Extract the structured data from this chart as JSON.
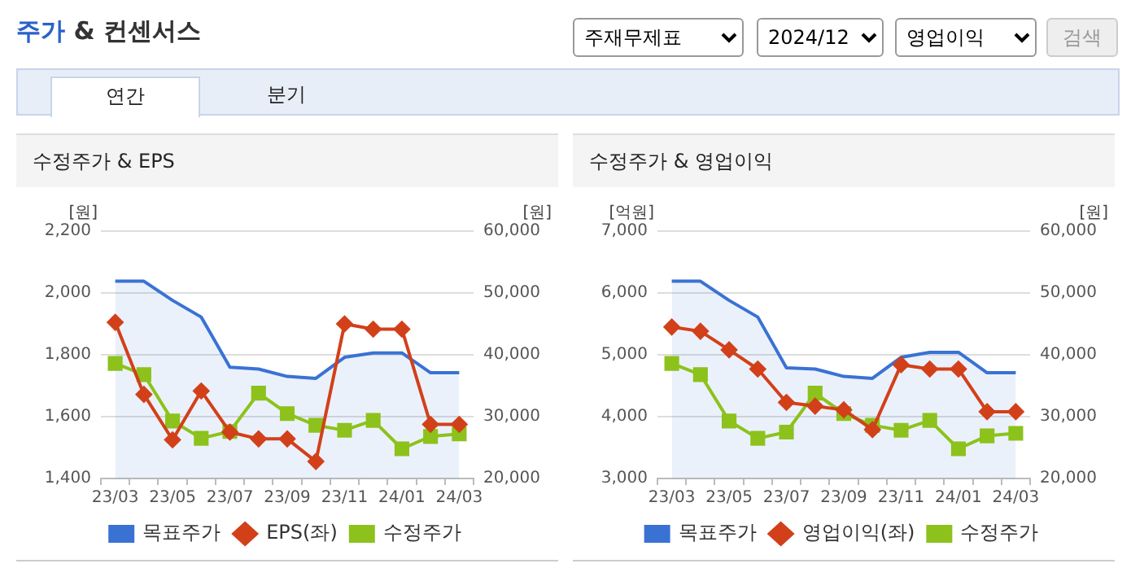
{
  "chart_data": [
    {
      "type": "other",
      "title": "주가 & 컨센서스",
      "annotations": [
        "주재무제표",
        "2024/12",
        "영업이익",
        "검색",
        "연간",
        "분기"
      ]
    },
    {
      "type": "line",
      "title": "수정주가 & EPS",
      "ylabel": "[원]",
      "y2label": "[원]",
      "grid": "y",
      "legend": "bottom",
      "categories": [
        "23/03",
        null,
        "23/05",
        null,
        "23/07",
        null,
        "23/09",
        null,
        "23/11",
        null,
        "24/01",
        null,
        "24/03"
      ],
      "ylim": [
        1400,
        2200
      ],
      "yticks": [
        {
          "value": 1400,
          "label": "1,400"
        },
        {
          "value": 1600,
          "label": "1,600"
        },
        {
          "value": 1800,
          "label": "1,800"
        },
        {
          "value": 2000,
          "label": "2,000"
        },
        {
          "value": 2200,
          "label": "2,200"
        }
      ],
      "y2lim": [
        20000,
        60000
      ],
      "y2ticks": [
        {
          "value": 20000,
          "label": "20,000"
        },
        {
          "value": 30000,
          "label": "30,000"
        },
        {
          "value": 40000,
          "label": "40,000"
        },
        {
          "value": 50000,
          "label": "50,000"
        },
        {
          "value": 60000,
          "label": "60,000"
        }
      ],
      "series": [
        {
          "name": "목표주가",
          "type": "area",
          "axis": "y2",
          "marker": "none",
          "color": "#3a72d4",
          "values": [
            51900,
            51900,
            48800,
            46100,
            38000,
            37700,
            36500,
            36200,
            39600,
            40300,
            40300,
            37100,
            37100
          ]
        },
        {
          "name": "EPS(좌)",
          "type": "line",
          "marker": "diamond",
          "color": "#d2401a",
          "values": [
            1905,
            1672,
            1525,
            1683,
            1550,
            1528,
            1528,
            1455,
            1900,
            1883,
            1883,
            1575,
            1575
          ]
        },
        {
          "name": "수정주가",
          "type": "line",
          "axis": "y2",
          "marker": "square",
          "color": "#8cc21b",
          "values": [
            38600,
            36800,
            29300,
            26500,
            27600,
            33800,
            30500,
            28600,
            27800,
            29400,
            24800,
            26800,
            27200
          ]
        }
      ]
    },
    {
      "type": "line",
      "title": "수정주가 & 영업이익",
      "ylabel": "[억원]",
      "y2label": "[원]",
      "grid": "y",
      "legend": "bottom",
      "categories": [
        "23/03",
        null,
        "23/05",
        null,
        "23/07",
        null,
        "23/09",
        null,
        "23/11",
        null,
        "24/01",
        null,
        "24/03"
      ],
      "ylim": [
        3000,
        7000
      ],
      "yticks": [
        {
          "value": 3000,
          "label": "3,000"
        },
        {
          "value": 4000,
          "label": "4,000"
        },
        {
          "value": 5000,
          "label": "5,000"
        },
        {
          "value": 6000,
          "label": "6,000"
        },
        {
          "value": 7000,
          "label": "7,000"
        }
      ],
      "y2lim": [
        20000,
        60000
      ],
      "y2ticks": [
        {
          "value": 20000,
          "label": "20,000"
        },
        {
          "value": 30000,
          "label": "30,000"
        },
        {
          "value": 40000,
          "label": "40,000"
        },
        {
          "value": 50000,
          "label": "50,000"
        },
        {
          "value": 60000,
          "label": "60,000"
        }
      ],
      "series": [
        {
          "name": "목표주가",
          "type": "area",
          "axis": "y2",
          "marker": "none",
          "color": "#3a72d4",
          "values": [
            51900,
            51900,
            48800,
            46100,
            37900,
            37700,
            36500,
            36200,
            39600,
            40400,
            40400,
            37100,
            37100
          ]
        },
        {
          "name": "영업이익(좌)",
          "type": "line",
          "marker": "diamond",
          "color": "#d2401a",
          "values": [
            5450,
            5380,
            5080,
            4770,
            4230,
            4170,
            4110,
            3790,
            4840,
            4770,
            4770,
            4080,
            4080
          ]
        },
        {
          "name": "수정주가",
          "type": "line",
          "axis": "y2",
          "marker": "square",
          "color": "#8cc21b",
          "values": [
            38600,
            36800,
            29300,
            26500,
            27500,
            33800,
            30500,
            28600,
            27800,
            29400,
            24800,
            26900,
            27300
          ]
        }
      ]
    }
  ]
}
